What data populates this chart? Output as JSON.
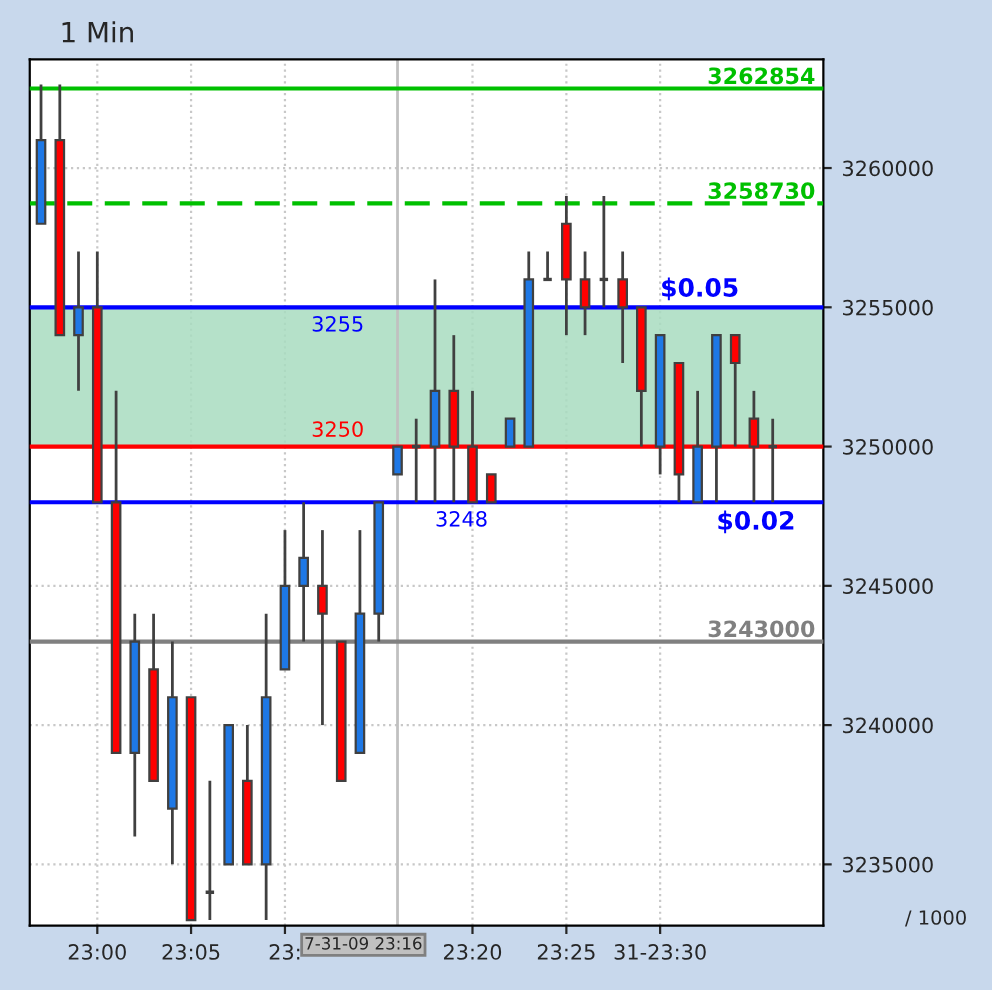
{
  "chart_data": {
    "type": "candlestick",
    "title": "1 Min",
    "x": [
      22.95,
      22.9667,
      22.9833,
      23.0,
      23.0167,
      23.0333,
      23.05,
      23.0667,
      23.0833,
      23.1,
      23.1167,
      23.1333,
      23.15,
      23.1667,
      23.1833,
      23.2,
      23.2167,
      23.2333,
      23.25,
      23.2667,
      23.2833,
      23.3,
      23.3167,
      23.3333,
      23.35,
      23.3667,
      23.3833,
      23.4,
      23.4167,
      23.4333,
      23.45,
      23.4667,
      23.4833,
      23.5,
      23.5167,
      23.5333,
      23.55,
      23.5667,
      23.5833,
      23.6
    ],
    "ohlc": [
      [
        3258000,
        3263000,
        3258000,
        3261000
      ],
      [
        3261000,
        3263000,
        3254000,
        3254000
      ],
      [
        3254000,
        3257000,
        3252000,
        3255000
      ],
      [
        3255000,
        3257000,
        3248000,
        3248000
      ],
      [
        3248000,
        3252000,
        3239000,
        3239000
      ],
      [
        3239000,
        3244000,
        3236000,
        3243000
      ],
      [
        3242000,
        3244000,
        3238000,
        3238000
      ],
      [
        3237000,
        3243000,
        3235000,
        3241000
      ],
      [
        3241000,
        3241000,
        3233000,
        3233000
      ],
      [
        3234000,
        3238000,
        3233000,
        3234000
      ],
      [
        3235000,
        3240000,
        3235000,
        3240000
      ],
      [
        3238000,
        3240000,
        3235000,
        3235000
      ],
      [
        3235000,
        3244000,
        3233000,
        3241000
      ],
      [
        3242000,
        3247000,
        3242000,
        3245000
      ],
      [
        3245000,
        3248000,
        3243000,
        3246000
      ],
      [
        3245000,
        3247000,
        3240000,
        3244000
      ],
      [
        3243000,
        3243000,
        3238000,
        3238000
      ],
      [
        3239000,
        3247000,
        3239000,
        3244000
      ],
      [
        3244000,
        3248000,
        3243000,
        3248000
      ],
      [
        3249000,
        3250000,
        3249000,
        3250000
      ],
      [
        3250000,
        3251000,
        3248000,
        3250000
      ],
      [
        3250000,
        3256000,
        3248000,
        3252000
      ],
      [
        3252000,
        3254000,
        3248000,
        3250000
      ],
      [
        3250000,
        3252000,
        3248000,
        3248000
      ],
      [
        3249000,
        3249000,
        3248000,
        3248000
      ],
      [
        3250000,
        3251000,
        3250000,
        3251000
      ],
      [
        3250000,
        3257000,
        3250000,
        3256000
      ],
      [
        3256000,
        3257000,
        3256000,
        3256000
      ],
      [
        3258000,
        3259000,
        3254000,
        3256000
      ],
      [
        3256000,
        3257000,
        3254000,
        3255000
      ],
      [
        3256000,
        3259000,
        3255000,
        3256000
      ],
      [
        3256000,
        3257000,
        3253000,
        3255000
      ],
      [
        3255000,
        3255000,
        3250000,
        3252000
      ],
      [
        3250000,
        3254000,
        3249000,
        3254000
      ],
      [
        3253000,
        3253000,
        3248000,
        3249000
      ],
      [
        3248000,
        3252000,
        3248000,
        3250000
      ],
      [
        3250000,
        3254000,
        3248000,
        3254000
      ],
      [
        3254000,
        3254000,
        3250000,
        3253000
      ],
      [
        3251000,
        3252000,
        3248000,
        3250000
      ],
      [
        3250000,
        3251000,
        3248000,
        3250000
      ]
    ],
    "colors": [
      "#1e78e6",
      "#ff0000",
      "#1e78e6",
      "#ff0000",
      "#ff0000",
      "#1e78e6",
      "#ff0000",
      "#1e78e6",
      "#ff0000",
      "#404040",
      "#1e78e6",
      "#ff0000",
      "#1e78e6",
      "#1e78e6",
      "#1e78e6",
      "#ff0000",
      "#ff0000",
      "#1e78e6",
      "#1e78e6",
      "#1e78e6",
      "#404040",
      "#1e78e6",
      "#ff0000",
      "#ff0000",
      "#ff0000",
      "#1e78e6",
      "#1e78e6",
      "#404040",
      "#ff0000",
      "#ff0000",
      "#404040",
      "#ff0000",
      "#ff0000",
      "#1e78e6",
      "#ff0000",
      "#1e78e6",
      "#1e78e6",
      "#ff0000",
      "#ff0000",
      "#404040"
    ],
    "xlim": [
      22.94,
      23.645
    ],
    "ylim": [
      3232800,
      3263900
    ],
    "xticks": [
      {
        "value": 23.0,
        "label": "23:00"
      },
      {
        "value": 23.0833,
        "label": "23:05"
      },
      {
        "value": 23.1667,
        "label": "23:"
      },
      {
        "value": 23.3333,
        "label": "23:20"
      },
      {
        "value": 23.4167,
        "label": "23:25"
      },
      {
        "value": 23.5,
        "label": "31-23:30"
      }
    ],
    "yticks": [
      3235000,
      3240000,
      3245000,
      3250000,
      3255000,
      3260000
    ],
    "grid": true,
    "ref_lines": [
      {
        "axis": "y",
        "value": 3262854,
        "label": "3262854",
        "color": "#00c000",
        "line_style": "solid"
      },
      {
        "axis": "y",
        "value": 3258730,
        "label": "3258730",
        "color": "#00c000",
        "line_style": "dashed"
      },
      {
        "axis": "y",
        "value": 3243000,
        "label": "3243000",
        "color": "#808080",
        "line_style": "solid"
      },
      {
        "axis": "y",
        "value": 3250000,
        "color": "#ff0000",
        "line_style": "solid"
      },
      {
        "axis": "y",
        "value": 3255000,
        "color": "#0000ff",
        "line_style": "solid"
      },
      {
        "axis": "y",
        "value": 3248000,
        "color": "#0000ff",
        "line_style": "solid"
      },
      {
        "axis": "x",
        "value": 23.2667,
        "label": "7-31-09 23:16",
        "color": "#c0c0c0",
        "line_style": "solid"
      }
    ],
    "bands": [
      {
        "axis": "y",
        "from": 3250000,
        "to": 3255000,
        "color": "#a8dcc0"
      }
    ],
    "annotations": [
      {
        "text": "3255",
        "x": 23.19,
        "y": 3255000
      },
      {
        "text": "3250",
        "x": 23.19,
        "y": 3250000
      },
      {
        "text": "3248",
        "x": 23.3,
        "y": 3248000
      },
      {
        "text": "$0.05",
        "x": 23.5,
        "y": 3255000
      },
      {
        "text": "$0.02",
        "x": 23.55,
        "y": 3248000
      },
      "/ 1000"
    ]
  }
}
